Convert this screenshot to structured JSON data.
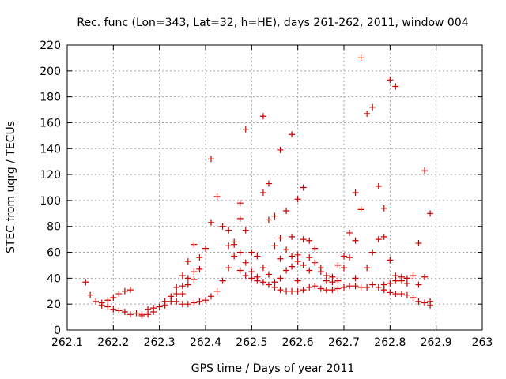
{
  "chart_data": {
    "type": "scatter",
    "title": "Rec. func (Lon=343, Lat=32, h=HE), days 261-262, 2011, window 004",
    "xlabel": "GPS time / Days of year 2011",
    "ylabel": "STEC from uqrg / TECUs",
    "xlim": [
      262.1,
      263
    ],
    "ylim": [
      0,
      220
    ],
    "xticks": [
      "262.1",
      "262.2",
      "262.3",
      "262.4",
      "262.5",
      "262.6",
      "262.7",
      "262.8",
      "262.9",
      "263"
    ],
    "yticks": [
      "0",
      "20",
      "40",
      "60",
      "80",
      "100",
      "120",
      "140",
      "160",
      "180",
      "200",
      "220"
    ],
    "grid": true,
    "marker": "plus",
    "color": "#cc0000",
    "series": [
      {
        "points": [
          [
            262.14,
            37
          ],
          [
            262.15,
            27
          ],
          [
            262.162,
            22
          ],
          [
            262.175,
            21
          ],
          [
            262.175,
            19
          ],
          [
            262.188,
            23
          ],
          [
            262.188,
            18
          ],
          [
            262.2,
            25
          ],
          [
            262.2,
            16
          ],
          [
            262.212,
            28
          ],
          [
            262.212,
            15
          ],
          [
            262.225,
            30
          ],
          [
            262.225,
            14
          ],
          [
            262.237,
            31
          ],
          [
            262.237,
            12
          ],
          [
            262.25,
            13
          ],
          [
            262.262,
            12
          ],
          [
            262.262,
            11
          ],
          [
            262.275,
            16
          ],
          [
            262.275,
            12
          ],
          [
            262.287,
            17
          ],
          [
            262.287,
            14
          ],
          [
            262.3,
            18
          ],
          [
            262.312,
            22
          ],
          [
            262.312,
            19
          ],
          [
            262.325,
            26
          ],
          [
            262.325,
            22
          ],
          [
            262.337,
            33
          ],
          [
            262.337,
            28
          ],
          [
            262.337,
            22
          ],
          [
            262.35,
            42
          ],
          [
            262.35,
            34
          ],
          [
            262.35,
            28
          ],
          [
            262.35,
            20
          ],
          [
            262.362,
            53
          ],
          [
            262.362,
            40
          ],
          [
            262.362,
            35
          ],
          [
            262.362,
            20
          ],
          [
            262.375,
            66
          ],
          [
            262.375,
            45
          ],
          [
            262.375,
            39
          ],
          [
            262.375,
            21
          ],
          [
            262.387,
            56
          ],
          [
            262.387,
            47
          ],
          [
            262.387,
            22
          ],
          [
            262.4,
            63
          ],
          [
            262.4,
            23
          ],
          [
            262.412,
            132
          ],
          [
            262.412,
            83
          ],
          [
            262.412,
            26
          ],
          [
            262.425,
            103
          ],
          [
            262.425,
            30
          ],
          [
            262.437,
            80
          ],
          [
            262.437,
            38
          ],
          [
            262.45,
            77
          ],
          [
            262.45,
            65
          ],
          [
            262.45,
            48
          ],
          [
            262.462,
            68
          ],
          [
            262.462,
            66
          ],
          [
            262.462,
            57
          ],
          [
            262.475,
            98
          ],
          [
            262.475,
            86
          ],
          [
            262.475,
            60
          ],
          [
            262.475,
            46
          ],
          [
            262.487,
            155
          ],
          [
            262.487,
            77
          ],
          [
            262.487,
            52
          ],
          [
            262.487,
            42
          ],
          [
            262.5,
            60
          ],
          [
            262.5,
            45
          ],
          [
            262.5,
            40
          ],
          [
            262.512,
            57
          ],
          [
            262.512,
            41
          ],
          [
            262.512,
            38
          ],
          [
            262.525,
            165
          ],
          [
            262.525,
            106
          ],
          [
            262.525,
            48
          ],
          [
            262.525,
            37
          ],
          [
            262.537,
            113
          ],
          [
            262.537,
            85
          ],
          [
            262.537,
            43
          ],
          [
            262.537,
            35
          ],
          [
            262.55,
            88
          ],
          [
            262.55,
            65
          ],
          [
            262.55,
            37
          ],
          [
            262.55,
            33
          ],
          [
            262.562,
            139
          ],
          [
            262.562,
            71
          ],
          [
            262.562,
            55
          ],
          [
            262.562,
            40
          ],
          [
            262.562,
            31
          ],
          [
            262.575,
            92
          ],
          [
            262.575,
            62
          ],
          [
            262.575,
            46
          ],
          [
            262.575,
            30
          ],
          [
            262.587,
            151
          ],
          [
            262.587,
            72
          ],
          [
            262.587,
            57
          ],
          [
            262.587,
            49
          ],
          [
            262.587,
            30
          ],
          [
            262.6,
            101
          ],
          [
            262.6,
            58
          ],
          [
            262.6,
            53
          ],
          [
            262.6,
            38
          ],
          [
            262.6,
            30
          ],
          [
            262.612,
            110
          ],
          [
            262.612,
            70
          ],
          [
            262.612,
            50
          ],
          [
            262.612,
            31
          ],
          [
            262.625,
            69
          ],
          [
            262.625,
            56
          ],
          [
            262.625,
            46
          ],
          [
            262.625,
            33
          ],
          [
            262.637,
            63
          ],
          [
            262.637,
            52
          ],
          [
            262.637,
            34
          ],
          [
            262.65,
            48
          ],
          [
            262.65,
            45
          ],
          [
            262.65,
            32
          ],
          [
            262.662,
            42
          ],
          [
            262.662,
            38
          ],
          [
            262.662,
            31
          ],
          [
            262.675,
            41
          ],
          [
            262.675,
            37
          ],
          [
            262.675,
            31
          ],
          [
            262.687,
            50
          ],
          [
            262.687,
            38
          ],
          [
            262.687,
            32
          ],
          [
            262.7,
            57
          ],
          [
            262.7,
            48
          ],
          [
            262.7,
            33
          ],
          [
            262.712,
            75
          ],
          [
            262.712,
            56
          ],
          [
            262.712,
            34
          ],
          [
            262.725,
            106
          ],
          [
            262.725,
            69
          ],
          [
            262.725,
            40
          ],
          [
            262.725,
            34
          ],
          [
            262.737,
            210
          ],
          [
            262.737,
            93
          ],
          [
            262.737,
            33
          ],
          [
            262.75,
            167
          ],
          [
            262.75,
            48
          ],
          [
            262.75,
            33
          ],
          [
            262.762,
            172
          ],
          [
            262.762,
            60
          ],
          [
            262.762,
            35
          ],
          [
            262.775,
            111
          ],
          [
            262.775,
            70
          ],
          [
            262.775,
            33
          ],
          [
            262.787,
            94
          ],
          [
            262.787,
            72
          ],
          [
            262.787,
            35
          ],
          [
            262.787,
            31
          ],
          [
            262.8,
            193
          ],
          [
            262.8,
            54
          ],
          [
            262.8,
            36
          ],
          [
            262.8,
            29
          ],
          [
            262.812,
            188
          ],
          [
            262.812,
            42
          ],
          [
            262.812,
            38
          ],
          [
            262.812,
            28
          ],
          [
            262.825,
            41
          ],
          [
            262.825,
            38
          ],
          [
            262.825,
            28
          ],
          [
            262.837,
            40
          ],
          [
            262.837,
            36
          ],
          [
            262.837,
            27
          ],
          [
            262.85,
            42
          ],
          [
            262.85,
            25
          ],
          [
            262.862,
            67
          ],
          [
            262.862,
            35
          ],
          [
            262.862,
            22
          ],
          [
            262.875,
            123
          ],
          [
            262.875,
            41
          ],
          [
            262.875,
            21
          ],
          [
            262.887,
            90
          ],
          [
            262.887,
            22
          ],
          [
            262.887,
            19
          ]
        ]
      }
    ]
  }
}
